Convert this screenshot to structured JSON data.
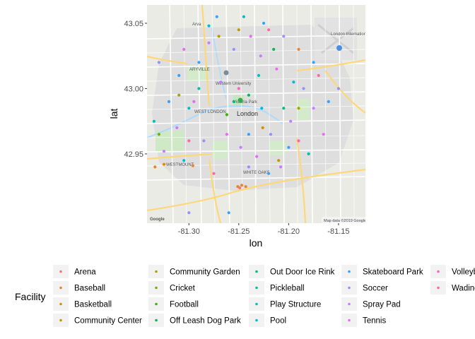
{
  "chart_data": {
    "type": "scatter",
    "xlabel": "lon",
    "ylabel": "lat",
    "xlim": [
      -81.342,
      -81.123
    ],
    "ylim": [
      42.897,
      43.064
    ],
    "x_ticks": [
      -81.3,
      -81.25,
      -81.2,
      -81.15
    ],
    "x_tick_labels": [
      "-81.30",
      "-81.25",
      "-81.20",
      "-81.15"
    ],
    "y_ticks": [
      42.95,
      43.0,
      43.05
    ],
    "y_tick_labels": [
      "42.95",
      "43.00",
      "43.05"
    ],
    "background": "basemap",
    "basemap_labels": {
      "city": "London",
      "airport": "London International Airport",
      "university": "Western University",
      "park": "Victoria Park",
      "areas": [
        "Arva",
        "WEST LONDON",
        "WESTMOUNT",
        "WHITE OAKS",
        "ARYVILLE"
      ],
      "attribution": "Map data ©2019 Google",
      "logo": "Google"
    },
    "legend": {
      "title": "Facility",
      "position": "bottom",
      "items": [
        {
          "label": "Arena",
          "color": "#F8766D"
        },
        {
          "label": "Baseball",
          "color": "#EA8331"
        },
        {
          "label": "Basketball",
          "color": "#D89000"
        },
        {
          "label": "Community Center",
          "color": "#C09B00"
        },
        {
          "label": "Community Garden",
          "color": "#A3A500"
        },
        {
          "label": "Cricket",
          "color": "#7CAE00"
        },
        {
          "label": "Football",
          "color": "#39B600"
        },
        {
          "label": "Off Leash Dog Park",
          "color": "#00BB4E"
        },
        {
          "label": "Out Door Ice Rink",
          "color": "#00BF7D"
        },
        {
          "label": "Pickleball",
          "color": "#00C1A3"
        },
        {
          "label": "Play Structure",
          "color": "#00BFC4"
        },
        {
          "label": "Pool",
          "color": "#00BAE0"
        },
        {
          "label": "Skateboard Park",
          "color": "#35A2FF"
        },
        {
          "label": "Soccer",
          "color": "#9590FF"
        },
        {
          "label": "Spray Pad",
          "color": "#C77CFF"
        },
        {
          "label": "Tennis",
          "color": "#E76BF3"
        },
        {
          "label": "Volleyb",
          "color": "#FF62BC"
        },
        {
          "label": "Wading",
          "color": "#FF6A98"
        }
      ]
    },
    "points": [
      {
        "lon": -81.251,
        "lat": 42.925,
        "f": 1
      },
      {
        "lon": -81.247,
        "lat": 42.926,
        "f": 1
      },
      {
        "lon": -81.243,
        "lat": 42.925,
        "f": 1
      },
      {
        "lon": -81.249,
        "lat": 42.924,
        "f": 0
      },
      {
        "lon": -81.334,
        "lat": 42.94,
        "f": 1
      },
      {
        "lon": -81.325,
        "lat": 42.942,
        "f": 2
      },
      {
        "lon": -81.296,
        "lat": 42.941,
        "f": 1
      },
      {
        "lon": -81.226,
        "lat": 42.97,
        "f": 2
      },
      {
        "lon": -81.19,
        "lat": 43.03,
        "f": 1
      },
      {
        "lon": -81.27,
        "lat": 43.04,
        "f": 3
      },
      {
        "lon": -81.25,
        "lat": 43.045,
        "f": 3
      },
      {
        "lon": -81.21,
        "lat": 42.945,
        "f": 3
      },
      {
        "lon": -81.31,
        "lat": 42.995,
        "f": 4
      },
      {
        "lon": -81.19,
        "lat": 42.985,
        "f": 4
      },
      {
        "lon": -81.33,
        "lat": 42.965,
        "f": 5
      },
      {
        "lon": -81.262,
        "lat": 42.98,
        "f": 6
      },
      {
        "lon": -81.24,
        "lat": 42.995,
        "f": 7
      },
      {
        "lon": -81.215,
        "lat": 43.03,
        "f": 7
      },
      {
        "lon": -81.255,
        "lat": 42.99,
        "f": 8
      },
      {
        "lon": -81.205,
        "lat": 42.985,
        "f": 8
      },
      {
        "lon": -81.29,
        "lat": 43.0,
        "f": 9
      },
      {
        "lon": -81.18,
        "lat": 42.95,
        "f": 9
      },
      {
        "lon": -81.28,
        "lat": 43.048,
        "f": 10
      },
      {
        "lon": -81.245,
        "lat": 43.055,
        "f": 10
      },
      {
        "lon": -81.3,
        "lat": 42.985,
        "f": 10
      },
      {
        "lon": -81.23,
        "lat": 43.01,
        "f": 10
      },
      {
        "lon": -81.335,
        "lat": 42.975,
        "f": 10
      },
      {
        "lon": -81.305,
        "lat": 42.945,
        "f": 11
      },
      {
        "lon": -81.227,
        "lat": 42.985,
        "f": 11
      },
      {
        "lon": -81.195,
        "lat": 43.005,
        "f": 11
      },
      {
        "lon": -81.272,
        "lat": 43.055,
        "f": 12
      },
      {
        "lon": -81.225,
        "lat": 43.05,
        "f": 12
      },
      {
        "lon": -81.29,
        "lat": 43.02,
        "f": 12
      },
      {
        "lon": -81.32,
        "lat": 42.99,
        "f": 12
      },
      {
        "lon": -81.24,
        "lat": 42.965,
        "f": 12
      },
      {
        "lon": -81.2,
        "lat": 42.955,
        "f": 12
      },
      {
        "lon": -81.16,
        "lat": 42.99,
        "f": 12
      },
      {
        "lon": -81.26,
        "lat": 42.905,
        "f": 12
      },
      {
        "lon": -81.22,
        "lat": 42.935,
        "f": 12
      },
      {
        "lon": -81.175,
        "lat": 43.02,
        "f": 12
      },
      {
        "lon": -81.31,
        "lat": 43.01,
        "f": 12
      },
      {
        "lon": -81.255,
        "lat": 43.03,
        "f": 13
      },
      {
        "lon": -81.205,
        "lat": 43.04,
        "f": 13
      },
      {
        "lon": -81.185,
        "lat": 43.0,
        "f": 13
      },
      {
        "lon": -81.285,
        "lat": 42.96,
        "f": 13
      },
      {
        "lon": -81.24,
        "lat": 42.94,
        "f": 13
      },
      {
        "lon": -81.3,
        "lat": 42.905,
        "f": 13
      },
      {
        "lon": -81.33,
        "lat": 43.02,
        "f": 13
      },
      {
        "lon": -81.15,
        "lat": 43.0,
        "f": 13
      },
      {
        "lon": -81.218,
        "lat": 42.965,
        "f": 13
      },
      {
        "lon": -81.268,
        "lat": 43.005,
        "f": 14
      },
      {
        "lon": -81.228,
        "lat": 43.025,
        "f": 14
      },
      {
        "lon": -81.198,
        "lat": 42.975,
        "f": 14
      },
      {
        "lon": -81.312,
        "lat": 42.97,
        "f": 14
      },
      {
        "lon": -81.248,
        "lat": 42.955,
        "f": 14
      },
      {
        "lon": -81.208,
        "lat": 42.94,
        "f": 14
      },
      {
        "lon": -81.28,
        "lat": 43.035,
        "f": 14
      },
      {
        "lon": -81.175,
        "lat": 42.985,
        "f": 14
      },
      {
        "lon": -81.325,
        "lat": 42.952,
        "f": 14
      },
      {
        "lon": -81.238,
        "lat": 43.04,
        "f": 15
      },
      {
        "lon": -81.212,
        "lat": 43.015,
        "f": 15
      },
      {
        "lon": -81.262,
        "lat": 42.965,
        "f": 15
      },
      {
        "lon": -81.295,
        "lat": 42.99,
        "f": 15
      },
      {
        "lon": -81.165,
        "lat": 42.965,
        "f": 15
      },
      {
        "lon": -81.232,
        "lat": 42.948,
        "f": 15
      },
      {
        "lon": -81.305,
        "lat": 43.03,
        "f": 15
      },
      {
        "lon": -81.25,
        "lat": 43.0,
        "f": 16
      },
      {
        "lon": -81.19,
        "lat": 42.96,
        "f": 16
      },
      {
        "lon": -81.275,
        "lat": 42.935,
        "f": 16
      },
      {
        "lon": -81.22,
        "lat": 43.045,
        "f": 17
      },
      {
        "lon": -81.3,
        "lat": 42.96,
        "f": 17
      },
      {
        "lon": -81.17,
        "lat": 43.01,
        "f": 17
      }
    ]
  }
}
